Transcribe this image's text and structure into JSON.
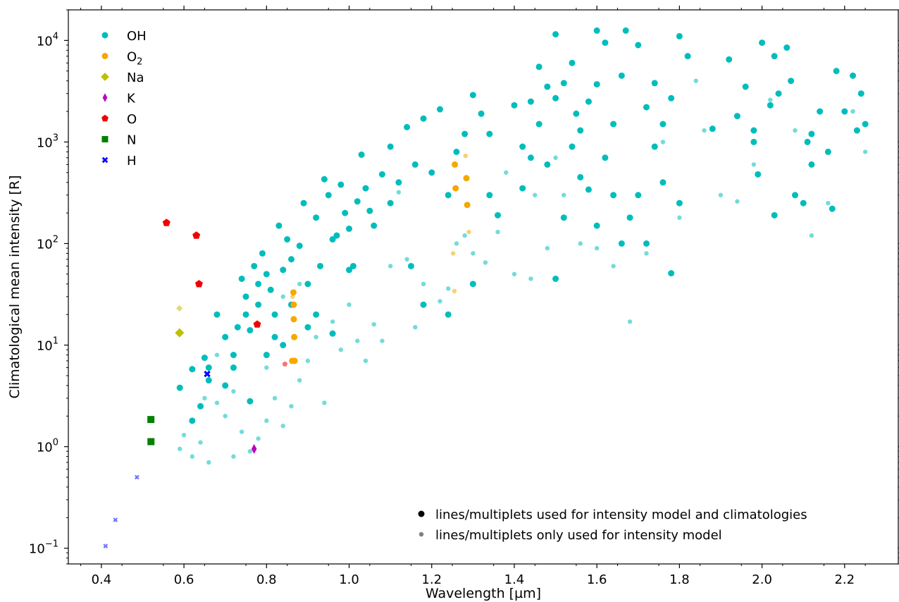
{
  "chart_data": {
    "type": "scatter",
    "xlabel": "Wavelength [µm]",
    "ylabel": "Climatological mean intensity [R]",
    "xlim": [
      0.32,
      2.33
    ],
    "ylim": [
      0.07,
      20000
    ],
    "yscale": "log",
    "x_ticks": [
      "0.4",
      "0.6",
      "0.8",
      "1.0",
      "1.2",
      "1.4",
      "1.6",
      "1.8",
      "2.0",
      "2.2"
    ],
    "y_ticks": [
      {
        "value": 0.1,
        "base": "10",
        "exp": "−1"
      },
      {
        "value": 1,
        "base": "10",
        "exp": "0"
      },
      {
        "value": 10,
        "base": "10",
        "exp": "1"
      },
      {
        "value": 100,
        "base": "10",
        "exp": "2"
      },
      {
        "value": 1000,
        "base": "10",
        "exp": "3"
      },
      {
        "value": 10000,
        "base": "10",
        "exp": "4"
      }
    ],
    "grid": false,
    "series_legend_placement": "top-left",
    "marker_legend_placement": "bottom-right",
    "series": [
      {
        "name": "OH",
        "subscript": "",
        "color": "#00bdbd",
        "marker": "circle",
        "points_climatology": [
          [
            0.59,
            3.8
          ],
          [
            0.62,
            5.8
          ],
          [
            0.65,
            7.5
          ],
          [
            0.66,
            6
          ],
          [
            0.68,
            20
          ],
          [
            0.7,
            12
          ],
          [
            0.72,
            8
          ],
          [
            0.73,
            15
          ],
          [
            0.74,
            45
          ],
          [
            0.75,
            30
          ],
          [
            0.76,
            14
          ],
          [
            0.77,
            60
          ],
          [
            0.78,
            25
          ],
          [
            0.79,
            80
          ],
          [
            0.8,
            50
          ],
          [
            0.81,
            35
          ],
          [
            0.82,
            20
          ],
          [
            0.83,
            150
          ],
          [
            0.84,
            55
          ],
          [
            0.85,
            110
          ],
          [
            0.86,
            70
          ],
          [
            0.88,
            95
          ],
          [
            0.89,
            250
          ],
          [
            0.9,
            40
          ],
          [
            0.92,
            180
          ],
          [
            0.93,
            60
          ],
          [
            0.94,
            430
          ],
          [
            0.95,
            300
          ],
          [
            0.96,
            110
          ],
          [
            0.97,
            120
          ],
          [
            0.98,
            380
          ],
          [
            0.99,
            200
          ],
          [
            1.0,
            140
          ],
          [
            1.01,
            60
          ],
          [
            1.02,
            260
          ],
          [
            1.03,
            750
          ],
          [
            1.04,
            350
          ],
          [
            1.05,
            210
          ],
          [
            1.06,
            150
          ],
          [
            1.08,
            480
          ],
          [
            1.1,
            900
          ],
          [
            1.12,
            400
          ],
          [
            1.14,
            1400
          ],
          [
            1.16,
            600
          ],
          [
            1.18,
            1700
          ],
          [
            1.2,
            500
          ],
          [
            1.22,
            2100
          ],
          [
            1.24,
            300
          ],
          [
            1.26,
            800
          ],
          [
            1.28,
            1200
          ],
          [
            1.3,
            2900
          ],
          [
            1.32,
            1900
          ],
          [
            1.34,
            1200
          ],
          [
            1.0,
            55
          ],
          [
            0.96,
            13
          ],
          [
            0.92,
            20
          ],
          [
            0.86,
            25
          ],
          [
            0.8,
            8
          ],
          [
            0.76,
            2.8
          ],
          [
            0.72,
            6
          ],
          [
            0.7,
            4
          ],
          [
            0.66,
            4.5
          ],
          [
            0.64,
            2.5
          ],
          [
            0.62,
            1.8
          ],
          [
            0.75,
            20
          ],
          [
            0.78,
            40
          ],
          [
            0.82,
            12
          ],
          [
            0.84,
            10
          ],
          [
            0.9,
            15
          ],
          [
            1.1,
            250
          ],
          [
            1.15,
            60
          ],
          [
            1.18,
            25
          ],
          [
            1.24,
            20
          ],
          [
            1.3,
            40
          ],
          [
            1.34,
            300
          ],
          [
            1.36,
            190
          ],
          [
            1.4,
            2300
          ],
          [
            1.42,
            900
          ],
          [
            1.44,
            2500
          ],
          [
            1.46,
            5500
          ],
          [
            1.48,
            3500
          ],
          [
            1.5,
            2700
          ],
          [
            1.5,
            11500
          ],
          [
            1.52,
            3800
          ],
          [
            1.54,
            6000
          ],
          [
            1.55,
            1900
          ],
          [
            1.56,
            1300
          ],
          [
            1.58,
            2500
          ],
          [
            1.6,
            3700
          ],
          [
            1.6,
            12500
          ],
          [
            1.62,
            9500
          ],
          [
            1.64,
            1500
          ],
          [
            1.66,
            4500
          ],
          [
            1.67,
            12500
          ],
          [
            1.7,
            9000
          ],
          [
            1.72,
            2200
          ],
          [
            1.74,
            3800
          ],
          [
            1.76,
            1500
          ],
          [
            1.78,
            2700
          ],
          [
            1.8,
            11000
          ],
          [
            1.82,
            7000
          ],
          [
            1.5,
            45
          ],
          [
            1.52,
            180
          ],
          [
            1.54,
            900
          ],
          [
            1.56,
            450
          ],
          [
            1.58,
            340
          ],
          [
            1.6,
            150
          ],
          [
            1.62,
            700
          ],
          [
            1.64,
            300
          ],
          [
            1.66,
            100
          ],
          [
            1.68,
            180
          ],
          [
            1.7,
            300
          ],
          [
            1.72,
            100
          ],
          [
            1.74,
            900
          ],
          [
            1.76,
            400
          ],
          [
            1.78,
            51
          ],
          [
            1.8,
            250
          ],
          [
            1.46,
            1500
          ],
          [
            1.48,
            600
          ],
          [
            1.44,
            700
          ],
          [
            1.42,
            350
          ],
          [
            1.88,
            1350
          ],
          [
            1.92,
            6500
          ],
          [
            1.94,
            1800
          ],
          [
            1.96,
            3500
          ],
          [
            1.98,
            1300
          ],
          [
            2.0,
            9500
          ],
          [
            2.02,
            2300
          ],
          [
            2.03,
            7000
          ],
          [
            2.04,
            3000
          ],
          [
            2.06,
            8500
          ],
          [
            2.07,
            4000
          ],
          [
            2.08,
            300
          ],
          [
            2.1,
            250
          ],
          [
            2.12,
            1200
          ],
          [
            2.14,
            2000
          ],
          [
            2.16,
            800
          ],
          [
            2.18,
            5000
          ],
          [
            2.2,
            2000
          ],
          [
            2.22,
            4500
          ],
          [
            2.24,
            3000
          ],
          [
            2.25,
            1500
          ],
          [
            2.23,
            1300
          ],
          [
            2.17,
            220
          ],
          [
            2.12,
            600
          ],
          [
            2.03,
            190
          ],
          [
            1.99,
            480
          ],
          [
            1.98,
            1000
          ],
          [
            2.11,
            1000
          ]
        ],
        "points_model_only": [
          [
            0.59,
            0.95
          ],
          [
            0.6,
            1.3
          ],
          [
            0.62,
            0.8
          ],
          [
            0.64,
            1.1
          ],
          [
            0.66,
            0.7
          ],
          [
            0.68,
            2.7
          ],
          [
            0.7,
            2
          ],
          [
            0.72,
            0.8
          ],
          [
            0.74,
            1.4
          ],
          [
            0.76,
            0.9
          ],
          [
            0.78,
            1.2
          ],
          [
            0.8,
            1.8
          ],
          [
            0.82,
            3
          ],
          [
            0.84,
            1.6
          ],
          [
            0.86,
            2.5
          ],
          [
            0.88,
            4.5
          ],
          [
            0.9,
            7
          ],
          [
            0.92,
            12
          ],
          [
            0.94,
            2.7
          ],
          [
            0.96,
            17
          ],
          [
            0.98,
            9
          ],
          [
            1.0,
            25
          ],
          [
            1.02,
            11
          ],
          [
            1.04,
            7
          ],
          [
            1.06,
            16
          ],
          [
            1.08,
            11
          ],
          [
            1.1,
            60
          ],
          [
            1.14,
            70
          ],
          [
            1.16,
            15
          ],
          [
            1.18,
            40
          ],
          [
            1.22,
            27
          ],
          [
            1.24,
            36
          ],
          [
            1.26,
            100
          ],
          [
            1.3,
            80
          ],
          [
            1.33,
            65
          ],
          [
            1.36,
            130
          ],
          [
            1.4,
            50
          ],
          [
            1.44,
            45
          ],
          [
            1.48,
            90
          ],
          [
            1.52,
            300
          ],
          [
            1.56,
            100
          ],
          [
            1.6,
            90
          ],
          [
            1.64,
            60
          ],
          [
            1.68,
            17
          ],
          [
            1.72,
            80
          ],
          [
            1.76,
            1000
          ],
          [
            1.8,
            180
          ],
          [
            1.84,
            4000
          ],
          [
            1.86,
            1300
          ],
          [
            1.9,
            300
          ],
          [
            1.94,
            260
          ],
          [
            1.98,
            600
          ],
          [
            2.02,
            2600
          ],
          [
            2.08,
            1300
          ],
          [
            2.12,
            120
          ],
          [
            2.16,
            250
          ],
          [
            2.22,
            2000
          ],
          [
            2.25,
            800
          ],
          [
            1.45,
            300
          ],
          [
            1.5,
            700
          ],
          [
            1.38,
            500
          ],
          [
            1.28,
            120
          ],
          [
            1.12,
            320
          ],
          [
            0.88,
            40
          ],
          [
            0.84,
            30
          ],
          [
            0.8,
            6
          ],
          [
            0.72,
            3.5
          ],
          [
            0.68,
            8
          ],
          [
            0.65,
            3
          ]
        ]
      },
      {
        "name": "O",
        "subscript": "2",
        "color": "#f5a800",
        "marker": "circle",
        "points_climatology": [
          [
            0.865,
            33
          ],
          [
            0.866,
            25
          ],
          [
            0.866,
            18
          ],
          [
            0.867,
            12
          ],
          [
            0.868,
            7
          ],
          [
            0.862,
            7
          ],
          [
            1.256,
            600
          ],
          [
            1.258,
            350
          ],
          [
            1.284,
            440
          ],
          [
            1.286,
            240
          ]
        ],
        "points_model_only": [
          [
            0.863,
            30
          ],
          [
            1.252,
            80
          ],
          [
            1.255,
            34
          ],
          [
            1.282,
            730
          ],
          [
            1.29,
            130
          ]
        ]
      },
      {
        "name": "Na",
        "subscript": "",
        "color": "#bfbf00",
        "marker": "diamond",
        "points_climatology": [
          [
            0.5893,
            13.2
          ]
        ],
        "points_model_only": [
          [
            0.5889,
            23
          ]
        ]
      },
      {
        "name": "K",
        "subscript": "",
        "color": "#bf00bf",
        "marker": "thin-diamond",
        "points_climatology": [
          [
            0.7699,
            0.95
          ]
        ],
        "points_model_only": []
      },
      {
        "name": "O",
        "subscript": "",
        "color": "#f00000",
        "marker": "pentagon",
        "points_climatology": [
          [
            0.5577,
            160
          ],
          [
            0.63,
            120
          ],
          [
            0.6364,
            40
          ],
          [
            0.7774,
            16
          ]
        ],
        "points_model_only": [
          [
            0.8446,
            6.5
          ]
        ]
      },
      {
        "name": "N",
        "subscript": "",
        "color": "#008000",
        "marker": "square",
        "points_climatology": [
          [
            0.5199,
            1.85
          ],
          [
            0.5201,
            1.12
          ]
        ],
        "points_model_only": []
      },
      {
        "name": "H",
        "subscript": "",
        "color": "#0000ff",
        "marker": "x",
        "points_climatology": [
          [
            0.6563,
            5.2
          ]
        ],
        "points_model_only": [
          [
            0.4861,
            0.5
          ],
          [
            0.434,
            0.19
          ],
          [
            0.4102,
            0.105
          ]
        ]
      }
    ],
    "marker_legend": [
      {
        "label": "lines/multiplets used for intensity model and climatologies",
        "color": "#000000"
      },
      {
        "label": "lines/multiplets only used for intensity model",
        "color": "#808080"
      }
    ]
  }
}
